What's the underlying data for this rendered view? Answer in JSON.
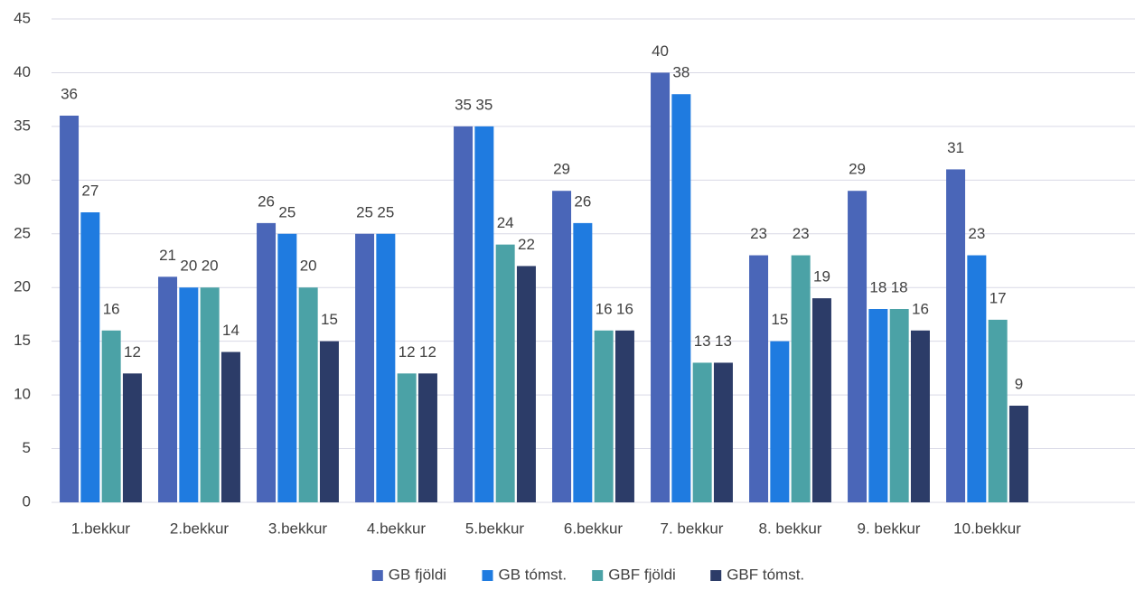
{
  "chart_data": {
    "type": "bar",
    "categories": [
      "1.bekkur",
      "2.bekkur",
      "3.bekkur",
      "4.bekkur",
      "5.bekkur",
      "6.bekkur",
      "7. bekkur",
      "8. bekkur",
      "9. bekkur",
      "10.bekkur",
      null
    ],
    "series": [
      {
        "name": "GB fjöldi",
        "color": "#4a66b8",
        "values": [
          36,
          21,
          26,
          25,
          35,
          29,
          40,
          23,
          29,
          31,
          null
        ]
      },
      {
        "name": "GB tómst.",
        "color": "#1f7be0",
        "values": [
          27,
          20,
          25,
          25,
          35,
          26,
          38,
          15,
          18,
          23,
          null
        ]
      },
      {
        "name": "GBF fjöldi",
        "color": "#4ba2a6",
        "values": [
          16,
          20,
          20,
          12,
          24,
          16,
          13,
          23,
          18,
          17,
          null
        ]
      },
      {
        "name": "GBF tómst.",
        "color": "#2c3c68",
        "values": [
          12,
          14,
          15,
          12,
          22,
          16,
          13,
          19,
          16,
          9,
          null
        ]
      }
    ],
    "ylim": [
      0,
      45
    ],
    "yticks": [
      0,
      5,
      10,
      15,
      20,
      25,
      30,
      35,
      40,
      45
    ],
    "grid": true,
    "legend": "bottom"
  }
}
